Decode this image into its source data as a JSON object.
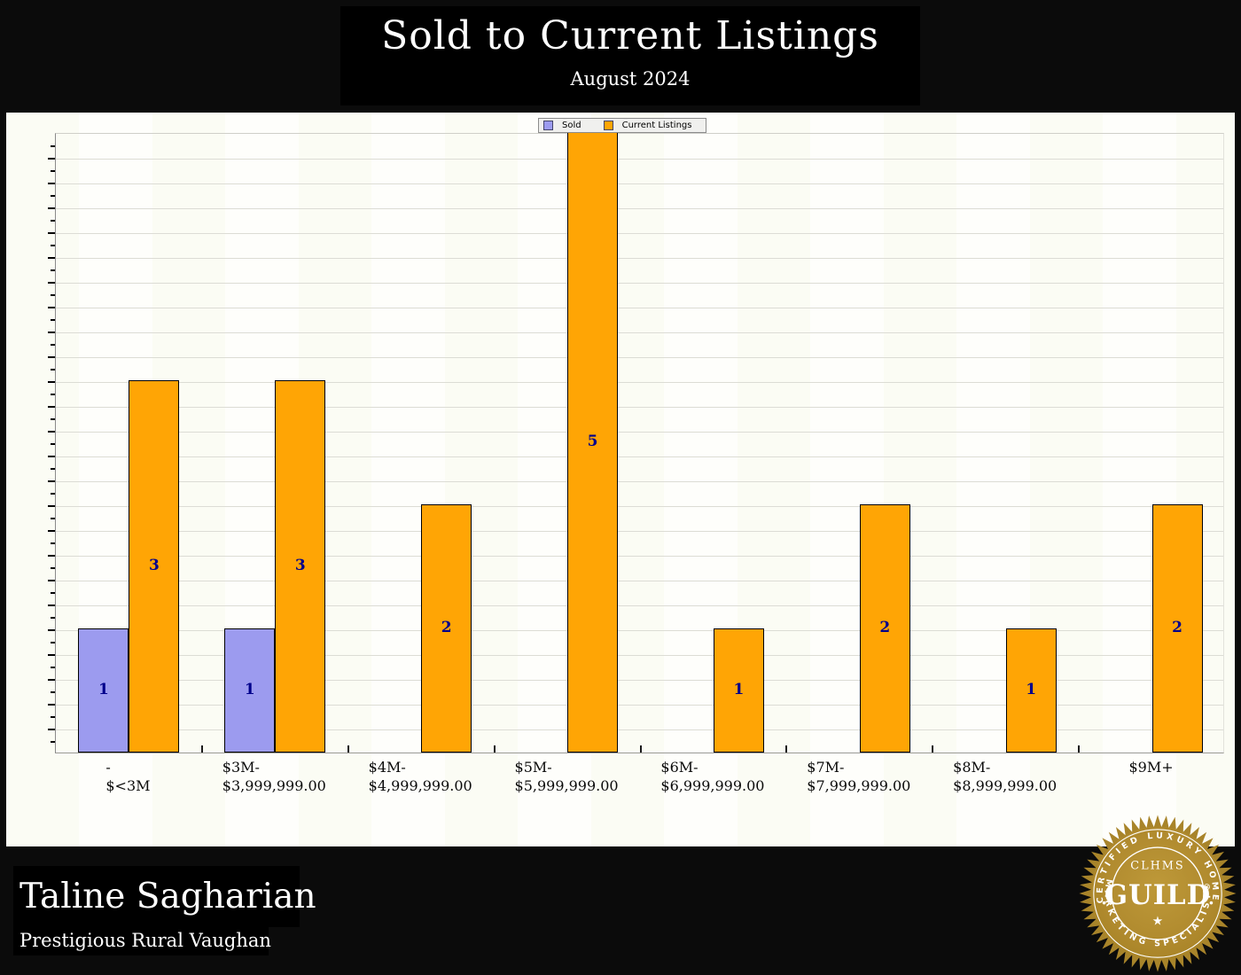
{
  "header": {
    "title": "Sold to Current Listings",
    "subtitle": "August 2024"
  },
  "legend": {
    "items": [
      {
        "label": "Sold",
        "color": "#9C9BEF"
      },
      {
        "label": "Current Listings",
        "color": "#FFA505"
      }
    ]
  },
  "chart_data": {
    "type": "bar",
    "title": "Sold to Current Listings",
    "subtitle": "August 2024",
    "categories": [
      [
        "-",
        "$<3M"
      ],
      [
        "$3M-",
        "$3,999,999.00"
      ],
      [
        "$4M-",
        "$4,999,999.00"
      ],
      [
        "$5M-",
        "$5,999,999.00"
      ],
      [
        "$6M-",
        "$6,999,999.00"
      ],
      [
        "$7M-",
        "$7,999,999.00"
      ],
      [
        "$8M-",
        "$8,999,999.00"
      ],
      [
        "$9M+"
      ]
    ],
    "series": [
      {
        "name": "Sold",
        "color": "#9C9BEF",
        "values": [
          1,
          1,
          0,
          0,
          0,
          0,
          0,
          0
        ]
      },
      {
        "name": "Current Listings",
        "color": "#FFA505",
        "values": [
          3,
          3,
          2,
          5,
          1,
          2,
          1,
          2
        ]
      }
    ],
    "ylim": [
      0,
      5
    ],
    "grid": "on",
    "grid_step": 0.2,
    "legend_position": "top-center",
    "bar_label_color": "#00008B",
    "xlabel": "",
    "ylabel": ""
  },
  "footer": {
    "name": "Taline Sagharian",
    "tagline": "Prestigious Rural Vaughan"
  },
  "seal": {
    "arc_top": "CERTIFIED LUXURY HOME",
    "org": "CLHMS",
    "name": "GUILD",
    "star": "★",
    "arc_bottom": "MARKETING SPECIALIST®",
    "gold": "#B08A2E"
  }
}
